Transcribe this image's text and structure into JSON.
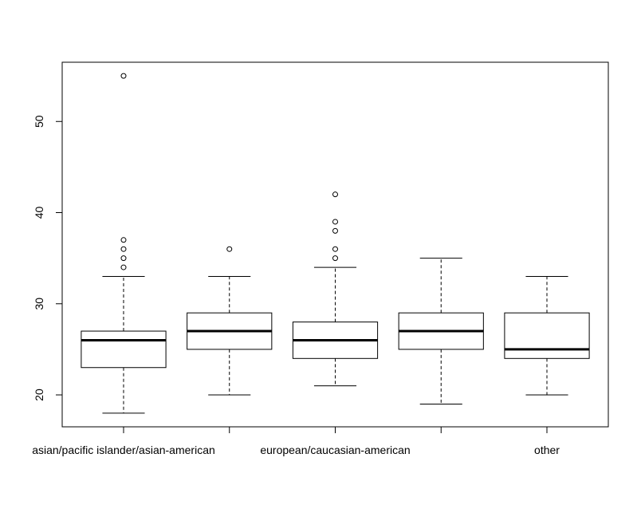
{
  "chart_data": {
    "type": "boxplot",
    "title": "",
    "xlabel": "",
    "ylabel": "",
    "ylim": [
      16.5,
      56.5
    ],
    "y_ticks": [
      20,
      30,
      40,
      50
    ],
    "grid": false,
    "categories": [
      "asian/pacific islander/asian-american",
      "",
      "european/caucasian-american",
      "",
      "other"
    ],
    "boxes": [
      {
        "whisker_low": 18,
        "q1": 23,
        "median": 26,
        "q3": 27,
        "whisker_high": 33,
        "outliers": [
          34,
          35,
          36,
          37,
          55
        ]
      },
      {
        "whisker_low": 20,
        "q1": 25,
        "median": 27,
        "q3": 29,
        "whisker_high": 33,
        "outliers": [
          36
        ]
      },
      {
        "whisker_low": 21,
        "q1": 24,
        "median": 26,
        "q3": 28,
        "whisker_high": 34,
        "outliers": [
          35,
          36,
          38,
          39,
          42
        ]
      },
      {
        "whisker_low": 19,
        "q1": 25,
        "median": 27,
        "q3": 29,
        "whisker_high": 35,
        "outliers": []
      },
      {
        "whisker_low": 20,
        "q1": 24,
        "median": 25,
        "q3": 29,
        "whisker_high": 33,
        "outliers": []
      }
    ]
  }
}
